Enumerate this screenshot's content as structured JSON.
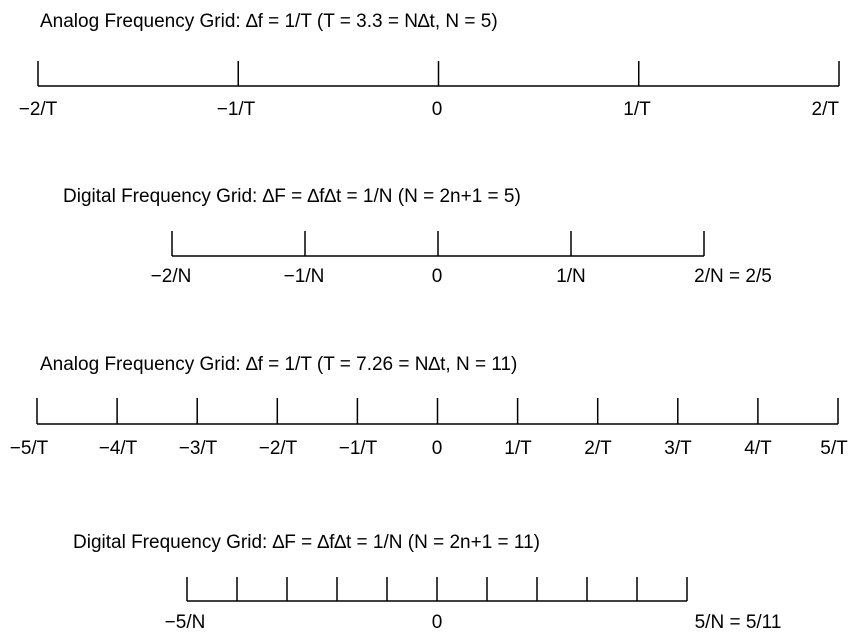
{
  "grids": [
    {
      "title": "Analog Frequency Grid: ∆f = 1/T (T = 3.3 = N∆t, N = 5)",
      "tick_labels": [
        "−2/T",
        "−1/T",
        "0",
        "1/T",
        "2/T"
      ]
    },
    {
      "title": "Digital Frequency Grid: ∆F = ∆f∆t = 1/N (N = 2n+1 = 5)",
      "tick_labels": [
        "−2/N",
        "−1/N",
        "0",
        "1/N",
        "2/N = 2/5"
      ]
    },
    {
      "title": "Analog Frequency Grid: ∆f = 1/T (T = 7.26 = N∆t, N = 11)",
      "tick_labels": [
        "−5/T",
        "−4/T",
        "−3/T",
        "−2/T",
        "−1/T",
        "0",
        "1/T",
        "2/T",
        "3/T",
        "4/T",
        "5/T"
      ]
    },
    {
      "title": "Digital Frequency Grid: ∆F = ∆f∆t = 1/N (N = 2n+1 = 11)",
      "tick_labels": [
        "−5/N",
        "",
        "",
        "",
        "",
        "0",
        "",
        "",
        "",
        "",
        "5/N = 5/11"
      ]
    }
  ]
}
